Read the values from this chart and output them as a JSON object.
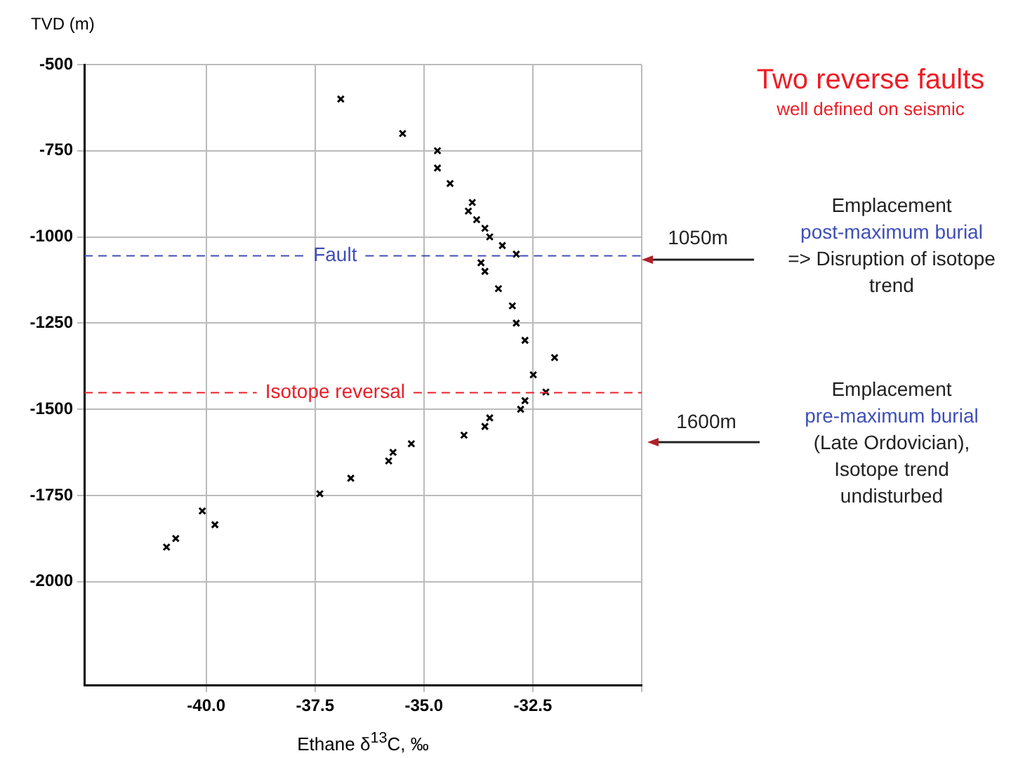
{
  "chart_data": {
    "type": "scatter",
    "title": "Two reverse faults",
    "subtitle": "well defined on seismic",
    "xlabel": "Ethane δ$^{13}$C, ‰",
    "ylabel": "TVD (m)",
    "x": [
      -36.91,
      -35.49,
      -34.69,
      -34.69,
      -34.4,
      -33.89,
      -33.98,
      -33.79,
      -33.6,
      -33.49,
      -33.2,
      -32.88,
      -33.69,
      -33.6,
      -33.29,
      -32.97,
      -32.88,
      -32.68,
      -32.0,
      -32.49,
      -32.2,
      -32.68,
      -32.78,
      -33.49,
      -33.6,
      -34.08,
      -35.29,
      -35.71,
      -35.81,
      -36.68,
      -37.39,
      -39.8,
      -40.09,
      -40.7,
      -40.91
    ],
    "values": [
      -600,
      -700,
      -750,
      -800,
      -845,
      -900,
      -925,
      -950,
      -975,
      -1000,
      -1025,
      -1050,
      -1075,
      -1100,
      -1150,
      -1200,
      -1250,
      -1300,
      -1350,
      -1400,
      -1450,
      -1475,
      -1500,
      -1525,
      -1550,
      -1575,
      -1600,
      -1625,
      -1650,
      -1700,
      -1745,
      -1835,
      -1795,
      -1875,
      -1900
    ],
    "color": "#000000",
    "marker": "cross",
    "grid": true,
    "legend": false,
    "xlim": [
      -42.8,
      -30
    ],
    "xticks": [
      {
        "value": -40,
        "label": "-40.0"
      },
      -37.5,
      {
        "value": -35,
        "label": "-35.0"
      },
      -32.5,
      {
        "value": -30,
        "label": null
      }
    ],
    "ylim": [
      -2300,
      -500
    ],
    "yticks": [
      -500,
      -750,
      -1000,
      -1250,
      -1500,
      -1750,
      -2000
    ],
    "ref_lines": [
      {
        "axis": "y",
        "value": -1055,
        "label": "Fault",
        "color": "#3f4fb8",
        "line_style": "dashed"
      },
      {
        "axis": "y",
        "value": -1452,
        "label": "Isotope reversal",
        "color": "#e8202a",
        "line_style": "dashed"
      }
    ],
    "annotations": [
      "1050m",
      "Emplacement",
      "post-maximum burial",
      "=> Disruption of isotope trend",
      "1600m",
      "Emplacement",
      "pre-maximum burial",
      "(Late Ordovician), Isotope trend undisturbed"
    ]
  }
}
